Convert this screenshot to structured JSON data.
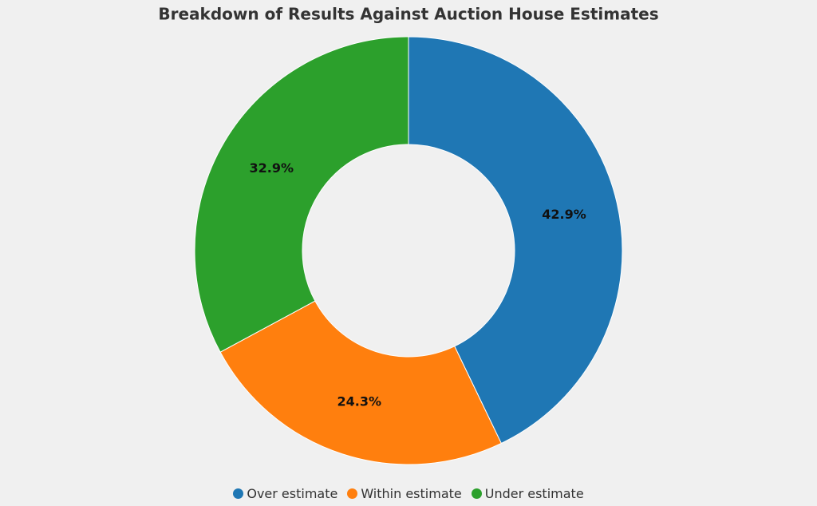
{
  "chart_data": {
    "type": "donut",
    "title": "Breakdown of Results Against Auction House Estimates",
    "categories": [
      "Over estimate",
      "Within estimate",
      "Under estimate"
    ],
    "values": [
      42.9,
      24.3,
      32.9
    ],
    "value_labels": [
      "42.9%",
      "24.3%",
      "32.9%"
    ],
    "colors": [
      "#1f77b4",
      "#ff7f0e",
      "#2ca02c"
    ],
    "legend": "bottom"
  }
}
